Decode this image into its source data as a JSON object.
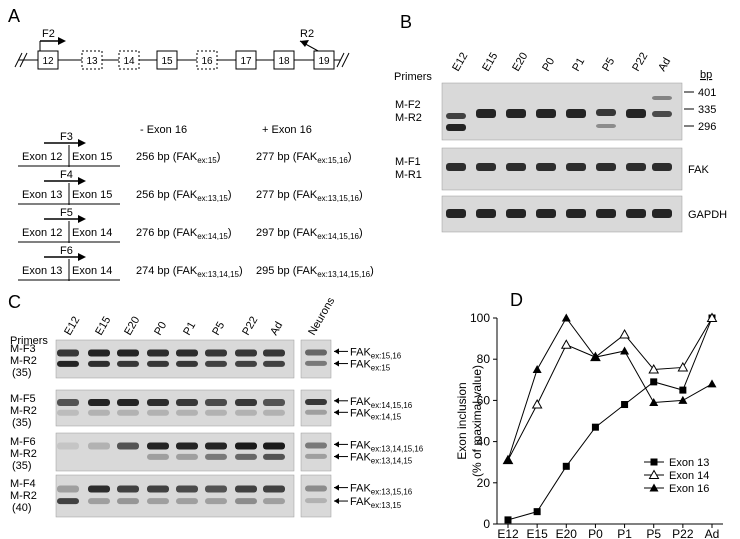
{
  "panels": {
    "a": "A",
    "b": "B",
    "c": "C",
    "d": "D"
  },
  "panelA": {
    "exons": [
      "12",
      "13",
      "14",
      "15",
      "16",
      "17",
      "18",
      "19"
    ],
    "dashed": [
      false,
      true,
      true,
      false,
      true,
      false,
      false,
      false
    ],
    "primer_top_left": "F2",
    "primer_top_right": "R2",
    "col_minus": "- Exon 16",
    "col_plus": "+ Exon 16",
    "rows": [
      {
        "primer": "F3",
        "left": "Exon 12",
        "right": "Exon 15",
        "minus_bp": "256 bp",
        "minus_sub": "ex:15",
        "plus_bp": "277 bp",
        "plus_sub": "ex:15,16"
      },
      {
        "primer": "F4",
        "left": "Exon 13",
        "right": "Exon 15",
        "minus_bp": "256 bp",
        "minus_sub": "ex:13,15",
        "plus_bp": "277 bp",
        "plus_sub": "ex:13,15,16"
      },
      {
        "primer": "F5",
        "left": "Exon 12",
        "right": "Exon 14",
        "minus_bp": "276 bp",
        "minus_sub": "ex:14,15",
        "plus_bp": "297 bp",
        "plus_sub": "ex:14,15,16"
      },
      {
        "primer": "F6",
        "left": "Exon 13",
        "right": "Exon 14",
        "minus_bp": "274 bp",
        "minus_sub": "ex:13,14,15",
        "plus_bp": "295 bp",
        "plus_sub": "ex:13,14,15,16"
      }
    ],
    "fak": "FAK"
  },
  "panelB": {
    "lanes": [
      "E12",
      "E15",
      "E20",
      "P0",
      "P1",
      "P5",
      "P22",
      "Ad"
    ],
    "primers_label": "Primers",
    "bp_label": "bp",
    "markers": [
      "401",
      "335",
      "296"
    ],
    "gel1_labels": [
      "M-F2",
      "M-R2"
    ],
    "gel2_labels": [
      "M-F1",
      "M-R1"
    ],
    "gel2_right": "FAK",
    "gel3_right": "GAPDH"
  },
  "panelC": {
    "lanes": [
      "E12",
      "E15",
      "E20",
      "P0",
      "P1",
      "P5",
      "P22",
      "Ad"
    ],
    "neurons": "Neurons",
    "primers_label": "Primers",
    "fak": "FAK",
    "gels": [
      {
        "l1": "M-F3",
        "l2": "M-R2",
        "l3": "(35)",
        "top_sub": "ex:15,16",
        "bot_sub": "ex:15"
      },
      {
        "l1": "M-F5",
        "l2": "M-R2",
        "l3": "(35)",
        "top_sub": "ex:14,15,16",
        "bot_sub": "ex:14,15"
      },
      {
        "l1": "M-F6",
        "l2": "M-R2",
        "l3": "(35)",
        "top_sub": "ex:13,14,15,16",
        "bot_sub": "ex:13,14,15"
      },
      {
        "l1": "M-F4",
        "l2": "M-R2",
        "l3": "(40)",
        "top_sub": "ex:13,15,16",
        "bot_sub": "ex:13,15"
      }
    ]
  },
  "chart_data": {
    "type": "line",
    "categories": [
      "E12",
      "E15",
      "E20",
      "P0",
      "P1",
      "P5",
      "P22",
      "Ad"
    ],
    "ylabel_line1": "Exon inclusion",
    "ylabel_line2": "(% of maximal value)",
    "ylim": [
      0,
      100
    ],
    "yticks": [
      "0",
      "20",
      "40",
      "60",
      "80",
      "100"
    ],
    "legend_position": "bottom-right",
    "series": [
      {
        "name": "Exon 13",
        "marker": "square-filled",
        "values": [
          2,
          6,
          28,
          47,
          58,
          69,
          65,
          100
        ]
      },
      {
        "name": "Exon 14",
        "marker": "triangle-open",
        "values": [
          31,
          58,
          87,
          81,
          92,
          75,
          76,
          100
        ]
      },
      {
        "name": "Exon 16",
        "marker": "triangle-filled",
        "values": [
          31,
          75,
          100,
          81,
          84,
          59,
          60,
          68
        ]
      }
    ]
  }
}
